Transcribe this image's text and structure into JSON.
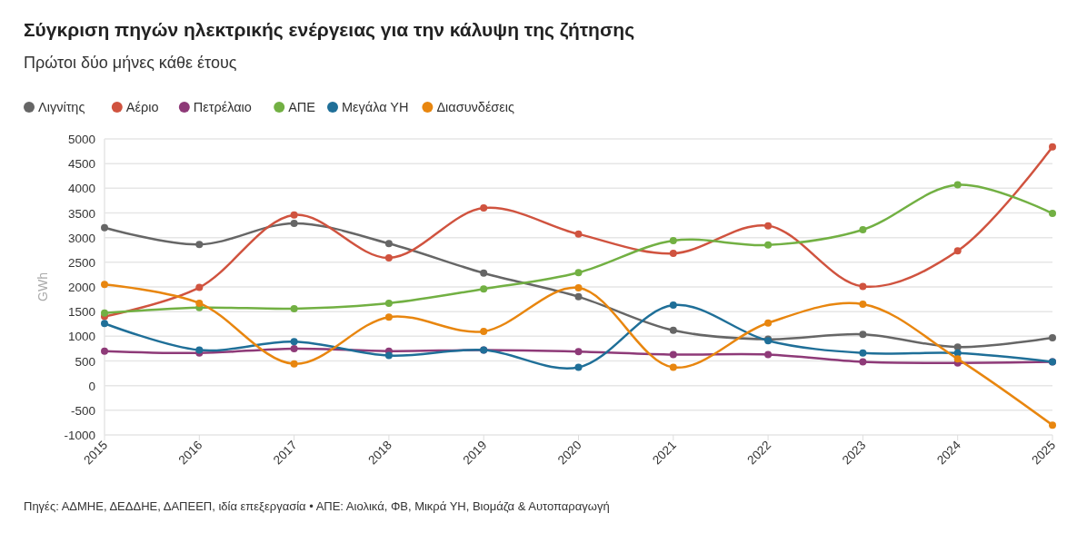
{
  "chart_data": {
    "type": "line",
    "title": "Σύγκριση πηγών ηλεκτρικής ενέργειας για την κάλυψη της ζήτησης",
    "subtitle": "Πρώτοι δύο μήνες κάθε έτους",
    "ylabel": "GWh",
    "categories": [
      "2015",
      "2016",
      "2017",
      "2018",
      "2019",
      "2020",
      "2021",
      "2022",
      "2023",
      "2024",
      "2025"
    ],
    "series": [
      {
        "name": "Λιγνίτης",
        "color": "#666666",
        "values": [
          3200,
          2860,
          3290,
          2880,
          2280,
          1800,
          1120,
          940,
          1040,
          780,
          970
        ]
      },
      {
        "name": "Αέριο",
        "color": "#d0533f",
        "values": [
          1400,
          1990,
          3460,
          2590,
          3600,
          3070,
          2680,
          3240,
          2010,
          2730,
          4840
        ]
      },
      {
        "name": "Πετρέλαιο",
        "color": "#8e3a78",
        "values": [
          700,
          660,
          750,
          700,
          720,
          690,
          630,
          630,
          480,
          460,
          480
        ]
      },
      {
        "name": "ΑΠΕ",
        "color": "#72b043",
        "values": [
          1470,
          1580,
          1560,
          1670,
          1960,
          2290,
          2940,
          2850,
          3160,
          4070,
          3490
        ]
      },
      {
        "name": "Μεγάλα ΥΗ",
        "color": "#1f6f98",
        "values": [
          1260,
          720,
          890,
          610,
          720,
          370,
          1630,
          910,
          660,
          660,
          480
        ]
      },
      {
        "name": "Διασυνδέσεις",
        "color": "#e8860f",
        "values": [
          2050,
          1670,
          440,
          1390,
          1100,
          1980,
          370,
          1270,
          1650,
          540,
          -800
        ]
      }
    ],
    "ylim": [
      -1000,
      5000
    ],
    "yticks": [
      -1000,
      -500,
      0,
      500,
      1000,
      1500,
      2000,
      2500,
      3000,
      3500,
      4000,
      4500,
      5000
    ],
    "grid": "y",
    "legend": "top left",
    "marker": "circle",
    "line_style": "solid",
    "annotations": [
      "Πηγές: ΑΔΜΗΕ, ΔΕΔΔΗΕ, ΔΑΠΕΕΠ, ιδία επεξεργασία • ΑΠΕ: Αιολικά, ΦΒ, Μικρά ΥΗ, Βιομάζα & Αυτοπαραγωγή"
    ]
  }
}
